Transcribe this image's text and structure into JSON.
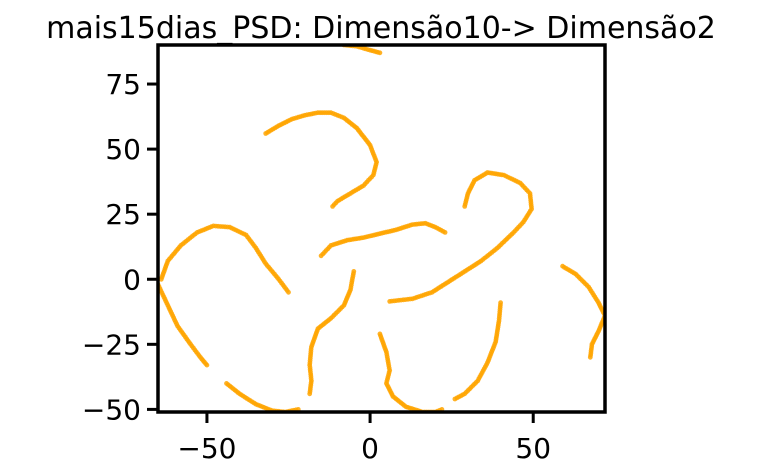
{
  "chart_data": {
    "type": "scatter",
    "title": "mais15dias_PSD: Dimensão10-> Dimensão2",
    "xlabel": "",
    "ylabel": "",
    "xlim": [
      -65,
      72
    ],
    "ylim": [
      -51,
      90
    ],
    "x_ticks": [
      {
        "value": -50,
        "label": "−50"
      },
      {
        "value": 0,
        "label": "0"
      },
      {
        "value": 50,
        "label": "50"
      }
    ],
    "y_ticks": [
      {
        "value": -50,
        "label": "−50"
      },
      {
        "value": -25,
        "label": "−25"
      },
      {
        "value": 0,
        "label": "0"
      },
      {
        "value": 25,
        "label": "25"
      },
      {
        "value": 50,
        "label": "50"
      },
      {
        "value": 75,
        "label": "75"
      }
    ],
    "grid": false,
    "marker_color": "#FFA500",
    "series": [
      {
        "points": [
          [
            -32,
            56
          ],
          [
            -28,
            59
          ],
          [
            -24,
            61.5
          ],
          [
            -20,
            63
          ],
          [
            -16,
            64
          ],
          [
            -12,
            64
          ],
          [
            -8,
            62
          ],
          [
            -4,
            58
          ],
          [
            0,
            51.5
          ],
          [
            2,
            45
          ],
          [
            1,
            40
          ],
          [
            -2,
            36
          ],
          [
            -6,
            33
          ],
          [
            -10,
            30
          ],
          [
            -11.5,
            28
          ]
        ]
      },
      {
        "points": [
          [
            -15,
            9
          ],
          [
            -12,
            13
          ],
          [
            -7,
            15
          ],
          [
            -2,
            16
          ],
          [
            3,
            17.5
          ],
          [
            8,
            19
          ],
          [
            13,
            21
          ],
          [
            17,
            21.5
          ],
          [
            20,
            20
          ],
          [
            23,
            18
          ]
        ]
      },
      {
        "points": [
          [
            29,
            28
          ],
          [
            30,
            33
          ],
          [
            32,
            38
          ],
          [
            36,
            41
          ],
          [
            41,
            40
          ],
          [
            46,
            37
          ],
          [
            49,
            33
          ],
          [
            49.5,
            27
          ],
          [
            47,
            22
          ],
          [
            44,
            18
          ],
          [
            39,
            12
          ],
          [
            34,
            7
          ],
          [
            29,
            3
          ],
          [
            24,
            -1
          ],
          [
            19,
            -5
          ],
          [
            13,
            -7.5
          ],
          [
            6,
            -8.5
          ]
        ]
      },
      {
        "points": [
          [
            -64,
            0
          ],
          [
            -62,
            7
          ],
          [
            -58,
            13
          ],
          [
            -53,
            18
          ],
          [
            -48,
            20.5
          ],
          [
            -43,
            20
          ],
          [
            -38,
            17
          ],
          [
            -35,
            12
          ],
          [
            -32,
            6
          ],
          [
            -28,
            0
          ],
          [
            -25,
            -5
          ]
        ]
      },
      {
        "points": [
          [
            -65,
            -2
          ],
          [
            -62,
            -10
          ],
          [
            -59,
            -18
          ],
          [
            -55,
            -25
          ],
          [
            -52,
            -30
          ],
          [
            -50,
            -33
          ]
        ]
      },
      {
        "points": [
          [
            -44,
            -40
          ],
          [
            -40,
            -44
          ],
          [
            -35,
            -48
          ],
          [
            -30,
            -50.5
          ],
          [
            -26,
            -51
          ],
          [
            -22,
            -50
          ]
        ]
      },
      {
        "points": [
          [
            -5,
            3
          ],
          [
            -6,
            -4
          ],
          [
            -8,
            -10
          ],
          [
            -12,
            -15
          ],
          [
            -16,
            -19
          ],
          [
            -18,
            -26
          ],
          [
            -18.5,
            -33
          ],
          [
            -18,
            -39
          ],
          [
            -18.5,
            -44
          ]
        ]
      },
      {
        "points": [
          [
            3,
            -21
          ],
          [
            5,
            -28
          ],
          [
            6,
            -35
          ],
          [
            5,
            -40
          ],
          [
            7,
            -45
          ],
          [
            11,
            -49
          ],
          [
            16,
            -51
          ],
          [
            20,
            -51
          ],
          [
            22,
            -50
          ]
        ]
      },
      {
        "points": [
          [
            26,
            -46
          ],
          [
            29,
            -44
          ],
          [
            33,
            -39
          ],
          [
            36,
            -32
          ],
          [
            38.5,
            -24
          ],
          [
            39.5,
            -16
          ],
          [
            40,
            -9
          ]
        ]
      },
      {
        "points": [
          [
            59,
            5
          ],
          [
            63,
            2
          ],
          [
            67,
            -3
          ],
          [
            70,
            -9
          ],
          [
            72,
            -14
          ],
          [
            70,
            -20
          ],
          [
            68,
            -25
          ],
          [
            67.5,
            -30
          ]
        ]
      },
      {
        "points": [
          [
            -8,
            90
          ],
          [
            -4,
            89.5
          ],
          [
            0,
            88
          ],
          [
            3,
            87
          ]
        ]
      }
    ]
  }
}
